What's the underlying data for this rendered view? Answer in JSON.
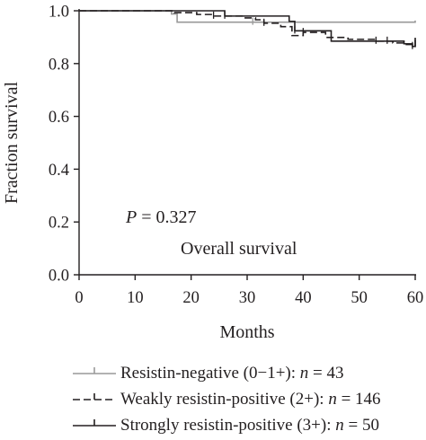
{
  "chart_data": {
    "type": "line",
    "step": true,
    "ylabel": "Fraction survival",
    "xlabel": "Months",
    "xlim": [
      0,
      60
    ],
    "ylim": [
      0,
      1.0
    ],
    "xticks": [
      0,
      10,
      20,
      30,
      40,
      50,
      60
    ],
    "xtick_labels": [
      "0",
      "10",
      "20",
      "30",
      "40",
      "50",
      "60"
    ],
    "yticks": [
      0.0,
      0.2,
      0.4,
      0.6,
      0.8,
      1.0
    ],
    "ytick_labels": [
      "0.0",
      "0.2",
      "0.4",
      "0.6",
      "0.8",
      "1.0"
    ],
    "annotations": [
      {
        "text_italic": "P",
        "text": " = 0.327"
      },
      {
        "text": "Overall survival"
      }
    ],
    "series": [
      {
        "name": "Resistin-negative (0−1+): ",
        "name_italic": "n",
        "name_suffix": " = 43",
        "color": "#999999",
        "dash": "",
        "x": [
          0,
          16.5,
          17.5,
          31,
          44,
          45.5,
          60
        ],
        "y": [
          1.0,
          0.988,
          0.957,
          0.957,
          0.957,
          0.957,
          0.963
        ]
      },
      {
        "name": "Weakly resistin-positive (2+): ",
        "name_italic": "n",
        "name_suffix": " = 146",
        "color": "#231f20",
        "dash": "8,4",
        "x": [
          0,
          17,
          21,
          24,
          29.5,
          31.5,
          33,
          36,
          38,
          40,
          44,
          48,
          53,
          56,
          58,
          59.5,
          60
        ],
        "y": [
          1.0,
          0.993,
          0.986,
          0.98,
          0.973,
          0.966,
          0.953,
          0.94,
          0.906,
          0.918,
          0.899,
          0.892,
          0.885,
          0.878,
          0.872,
          0.865,
          0.89
        ]
      },
      {
        "name": "Strongly resistin-positive (3+): ",
        "name_italic": "n",
        "name_suffix": " = 50",
        "color": "#231f20",
        "dash": "",
        "x": [
          0,
          17,
          24,
          26,
          30,
          37.5,
          38.5,
          45,
          50,
          55,
          58,
          59.5,
          60
        ],
        "y": [
          1.0,
          1.0,
          1.0,
          0.98,
          0.98,
          0.96,
          0.924,
          0.885,
          0.885,
          0.885,
          0.875,
          0.865,
          0.898
        ]
      }
    ],
    "grid": false,
    "legend_placement": "bottom"
  }
}
